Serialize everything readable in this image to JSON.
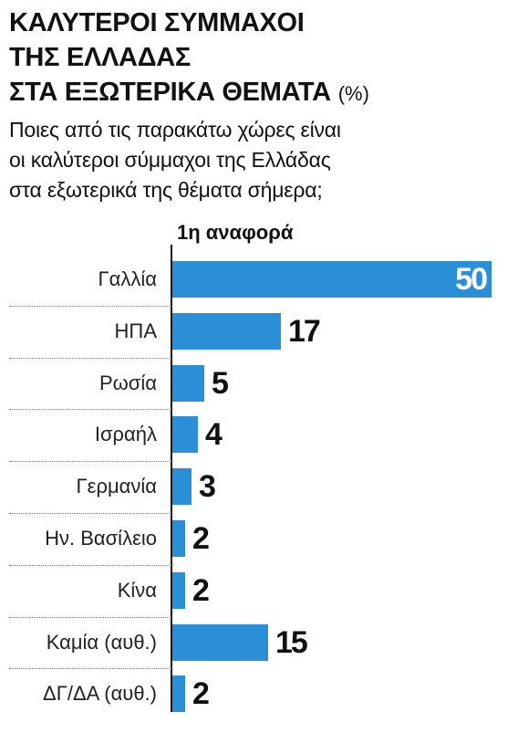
{
  "title": {
    "lines": [
      "ΚΑΛΥΤΕΡΟΙ ΣΥΜΜΑΧΟΙ",
      "ΤΗΣ ΕΛΛΑΔΑΣ",
      "ΣΤΑ ΕΞΩΤΕΡΙΚΑ ΘΕΜΑΤΑ"
    ],
    "unit": "(%)"
  },
  "subtitle": {
    "lines": [
      "Ποιες από τις παρακάτω χώρες είναι",
      "οι καλύτεροι σύμμαχοι της Ελλάδας",
      "στα εξωτερικά της θέματα σήμερα;"
    ]
  },
  "colors": {
    "bar": "#2b8fd7",
    "text": "#111111",
    "bar_label_inside": "#ffffff"
  },
  "chart_data": {
    "type": "bar",
    "orientation": "horizontal",
    "title": "ΚΑΛΥΤΕΡΟΙ ΣΥΜΜΑΧΟΙ ΤΗΣ ΕΛΛΑΔΑΣ ΣΤΑ ΕΞΩΤΕΡΙΚΑ ΘΕΜΑΤΑ",
    "unit": "(%)",
    "series_label": "1η αναφορά",
    "categories": [
      "Γαλλία",
      "ΗΠΑ",
      "Ρωσία",
      "Ισραήλ",
      "Γερμανία",
      "Ην. Βασίλειο",
      "Κίνα",
      "Καμία (αυθ.)",
      "ΔΓ/ΔΑ (αυθ.)"
    ],
    "values": [
      50,
      17,
      5,
      4,
      3,
      2,
      2,
      15,
      2
    ],
    "xlim": [
      0,
      50
    ],
    "grid": false,
    "legend": "none"
  }
}
